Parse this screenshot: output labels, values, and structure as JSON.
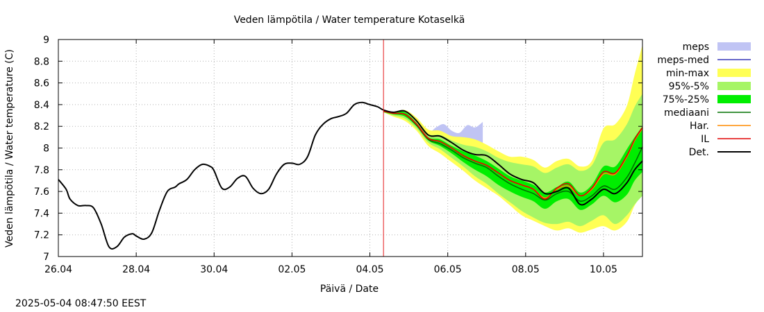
{
  "chart_data": {
    "type": "line",
    "title": "Veden lämpötila / Water temperature Kotaselkä",
    "xlabel": "Päivä / Date",
    "ylabel": "Veden lämpötila / Water temperature (C)",
    "ylim": [
      7,
      9
    ],
    "yticks": [
      7,
      7.2,
      7.4,
      7.6,
      7.8,
      8,
      8.2,
      8.4,
      8.6,
      8.8,
      9
    ],
    "ytick_labels": [
      "7",
      "7.2",
      "7.4",
      "7.6",
      "7.8",
      "8",
      "8.2",
      "8.4",
      "8.6",
      "8.8",
      "9"
    ],
    "xlim_day": [
      0,
      15
    ],
    "xticks": [
      {
        "day": 0,
        "label": "26.04"
      },
      {
        "day": 2,
        "label": "28.04"
      },
      {
        "day": 4,
        "label": "30.04"
      },
      {
        "day": 6,
        "label": "02.05"
      },
      {
        "day": 8,
        "label": "04.05"
      },
      {
        "day": 10,
        "label": "06.05"
      },
      {
        "day": 12,
        "label": "08.05"
      },
      {
        "day": 14,
        "label": "10.05"
      }
    ],
    "grid": true,
    "legend_position": "right",
    "now_line_day": 8.35,
    "now_line_color": "#e41a1c",
    "series": [
      {
        "name": "meps",
        "kind": "band",
        "color": "#c0c4f4",
        "x": [
          8.9,
          9.1,
          9.3,
          9.5,
          9.7,
          9.9,
          10.1,
          10.3,
          10.5,
          10.7,
          10.9
        ],
        "low": [
          8.28,
          8.22,
          8.12,
          8.03,
          8.07,
          8.05,
          7.97,
          7.95,
          7.98,
          7.97,
          8.0
        ],
        "high": [
          8.33,
          8.28,
          8.2,
          8.14,
          8.19,
          8.22,
          8.16,
          8.14,
          8.21,
          8.19,
          8.24
        ]
      },
      {
        "name": "meps-med",
        "kind": "line",
        "color": "#3535b8",
        "x": [],
        "y": []
      },
      {
        "name": "min-max",
        "kind": "band",
        "color": "#ffff55",
        "x": [
          8.35,
          8.6,
          8.9,
          9.2,
          9.5,
          9.8,
          10.1,
          10.4,
          10.7,
          11.0,
          11.3,
          11.6,
          11.9,
          12.2,
          12.5,
          12.8,
          13.1,
          13.4,
          13.7,
          14.0,
          14.3,
          14.6,
          14.8,
          15.0
        ],
        "low": [
          8.33,
          8.29,
          8.25,
          8.16,
          8.02,
          7.95,
          7.87,
          7.79,
          7.7,
          7.63,
          7.56,
          7.47,
          7.38,
          7.33,
          7.28,
          7.24,
          7.26,
          7.22,
          7.25,
          7.28,
          7.24,
          7.32,
          7.47,
          7.58
        ],
        "high": [
          8.34,
          8.33,
          8.35,
          8.28,
          8.17,
          8.16,
          8.11,
          8.1,
          8.08,
          8.03,
          7.97,
          7.92,
          7.92,
          7.89,
          7.82,
          7.88,
          7.9,
          7.83,
          7.88,
          8.18,
          8.22,
          8.39,
          8.68,
          8.95
        ]
      },
      {
        "name": "95%-5%",
        "kind": "band",
        "color": "#a6f566",
        "x": [
          8.35,
          8.6,
          8.9,
          9.2,
          9.5,
          9.8,
          10.1,
          10.4,
          10.7,
          11.0,
          11.3,
          11.6,
          11.9,
          12.2,
          12.5,
          12.8,
          13.1,
          13.4,
          13.7,
          14.0,
          14.3,
          14.6,
          14.8,
          15.0
        ],
        "low": [
          8.33,
          8.3,
          8.27,
          8.18,
          8.05,
          7.99,
          7.91,
          7.83,
          7.74,
          7.67,
          7.58,
          7.5,
          7.42,
          7.36,
          7.31,
          7.3,
          7.32,
          7.28,
          7.33,
          7.38,
          7.3,
          7.38,
          7.48,
          7.56
        ],
        "high": [
          8.34,
          8.33,
          8.34,
          8.25,
          8.13,
          8.12,
          8.07,
          8.03,
          8.01,
          7.97,
          7.91,
          7.87,
          7.85,
          7.83,
          7.77,
          7.82,
          7.85,
          7.79,
          7.84,
          8.05,
          8.08,
          8.22,
          8.38,
          8.5
        ]
      },
      {
        "name": "75%-25%",
        "kind": "band",
        "color": "#00ee00",
        "x": [
          8.35,
          8.6,
          8.9,
          9.2,
          9.5,
          9.8,
          10.1,
          10.4,
          10.7,
          11.0,
          11.3,
          11.6,
          11.9,
          12.2,
          12.5,
          12.8,
          13.1,
          13.4,
          13.7,
          14.0,
          14.3,
          14.6,
          14.8,
          15.0
        ],
        "low": [
          8.33,
          8.31,
          8.29,
          8.2,
          8.07,
          8.02,
          7.95,
          7.87,
          7.8,
          7.74,
          7.66,
          7.6,
          7.55,
          7.51,
          7.44,
          7.51,
          7.53,
          7.43,
          7.48,
          7.56,
          7.5,
          7.57,
          7.7,
          7.78
        ],
        "high": [
          8.34,
          8.33,
          8.33,
          8.23,
          8.1,
          8.08,
          8.02,
          7.97,
          7.93,
          7.88,
          7.81,
          7.74,
          7.7,
          7.66,
          7.59,
          7.64,
          7.69,
          7.59,
          7.66,
          7.83,
          7.83,
          7.99,
          8.1,
          8.2
        ]
      },
      {
        "name": "mediaani",
        "kind": "line",
        "color": "#007000",
        "x": [
          8.35,
          8.6,
          8.9,
          9.2,
          9.5,
          9.8,
          10.1,
          10.4,
          10.7,
          11.0,
          11.3,
          11.6,
          11.9,
          12.2,
          12.5,
          12.8,
          13.1,
          13.4,
          13.7,
          14.0,
          14.3,
          14.6,
          14.8,
          15.0
        ],
        "y": [
          8.34,
          8.32,
          8.31,
          8.21,
          8.08,
          8.04,
          7.98,
          7.91,
          7.86,
          7.82,
          7.74,
          7.67,
          7.62,
          7.58,
          7.52,
          7.58,
          7.6,
          7.51,
          7.56,
          7.65,
          7.62,
          7.73,
          7.86,
          8.01
        ]
      },
      {
        "name": "Har.",
        "kind": "line",
        "color": "#ff8c00",
        "x": [
          8.35,
          8.6,
          8.9,
          9.2,
          9.5,
          9.8,
          10.1,
          10.4,
          10.7,
          11.0,
          11.3,
          11.6,
          11.9,
          12.2,
          12.5,
          12.8,
          13.1,
          13.4,
          13.7,
          14.0,
          14.3,
          14.6,
          14.8,
          15.0
        ],
        "y": [
          8.34,
          8.32,
          8.31,
          8.22,
          8.09,
          8.06,
          8.0,
          7.93,
          7.88,
          7.84,
          7.77,
          7.7,
          7.66,
          7.62,
          7.54,
          7.62,
          7.65,
          7.56,
          7.62,
          7.76,
          7.76,
          7.92,
          8.07,
          8.18
        ]
      },
      {
        "name": "IL",
        "kind": "line",
        "color": "#e00000",
        "x": [
          8.35,
          8.6,
          8.9,
          9.2,
          9.5,
          9.8,
          10.1,
          10.4,
          10.7,
          11.0,
          11.3,
          11.6,
          11.9,
          12.2,
          12.5,
          12.8,
          13.1,
          13.4,
          13.7,
          14.0,
          14.3,
          14.6,
          14.8,
          15.0
        ],
        "y": [
          8.34,
          8.32,
          8.31,
          8.22,
          8.09,
          8.06,
          8.0,
          7.93,
          7.88,
          7.84,
          7.77,
          7.7,
          7.66,
          7.62,
          7.53,
          7.63,
          7.67,
          7.56,
          7.63,
          7.78,
          7.77,
          7.93,
          8.08,
          8.19
        ]
      },
      {
        "name": "Det.",
        "kind": "line",
        "color": "#000000",
        "x": [
          0.0,
          0.2,
          0.3,
          0.5,
          0.7,
          0.9,
          1.1,
          1.3,
          1.5,
          1.7,
          1.9,
          2.0,
          2.2,
          2.4,
          2.6,
          2.8,
          3.0,
          3.1,
          3.3,
          3.5,
          3.7,
          3.9,
          4.0,
          4.2,
          4.4,
          4.6,
          4.8,
          5.0,
          5.2,
          5.4,
          5.6,
          5.8,
          6.0,
          6.2,
          6.4,
          6.6,
          6.8,
          7.0,
          7.2,
          7.4,
          7.6,
          7.8,
          8.0,
          8.2,
          8.35,
          8.6,
          8.9,
          9.2,
          9.5,
          9.8,
          10.1,
          10.4,
          10.7,
          11.0,
          11.3,
          11.6,
          11.9,
          12.2,
          12.5,
          12.8,
          13.1,
          13.4,
          13.7,
          14.0,
          14.3,
          14.6,
          14.8,
          15.0
        ],
        "y": [
          7.71,
          7.62,
          7.53,
          7.47,
          7.47,
          7.45,
          7.3,
          7.09,
          7.09,
          7.18,
          7.21,
          7.19,
          7.16,
          7.22,
          7.43,
          7.6,
          7.64,
          7.67,
          7.71,
          7.8,
          7.85,
          7.83,
          7.79,
          7.63,
          7.64,
          7.72,
          7.74,
          7.63,
          7.58,
          7.62,
          7.76,
          7.85,
          7.86,
          7.85,
          7.92,
          8.12,
          8.22,
          8.27,
          8.29,
          8.32,
          8.4,
          8.42,
          8.4,
          8.38,
          8.35,
          8.33,
          8.34,
          8.25,
          8.12,
          8.11,
          8.05,
          7.98,
          7.94,
          7.93,
          7.85,
          7.76,
          7.71,
          7.68,
          7.58,
          7.6,
          7.63,
          7.48,
          7.53,
          7.62,
          7.58,
          7.68,
          7.8,
          7.88
        ]
      }
    ]
  },
  "timestamp": "2025-05-04  08:47:50 EEST"
}
